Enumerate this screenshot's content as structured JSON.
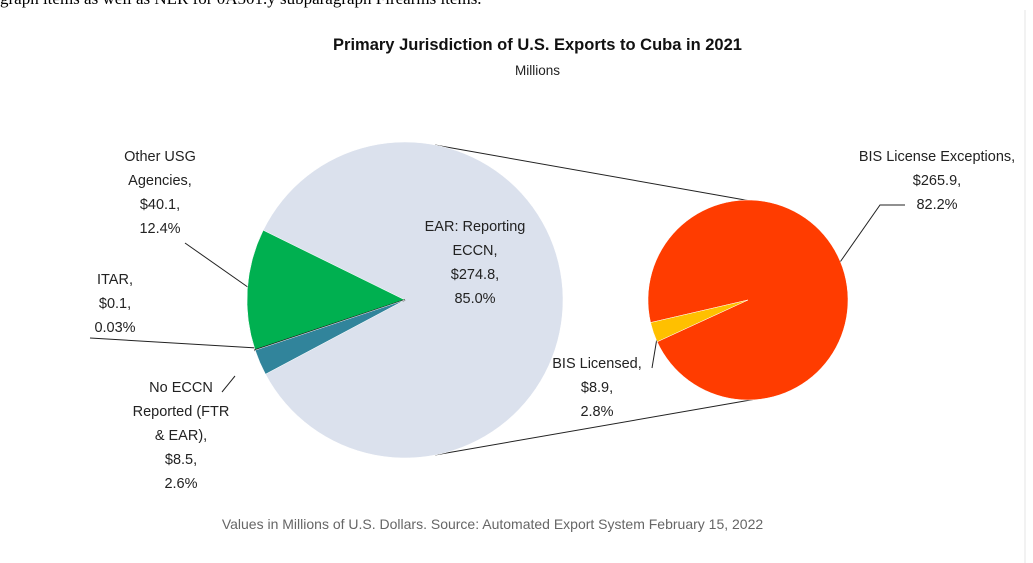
{
  "page_text": "graph items as well as NLR for 0A501.y subparagraph Firearms items.",
  "chart_data": {
    "type": "pie",
    "title": "Primary Jurisdiction of U.S. Exports to Cuba in 2021",
    "subtitle": "Millions",
    "footnote": "Values in Millions of U.S. Dollars.  Source: Automated Export System February 15, 2022",
    "categories": [
      "EAR: Reporting ECCN,",
      "Other USG Agencies,",
      "ITAR,",
      "No ECCN Reported (FTR & EAR),"
    ],
    "values": [
      274.8,
      40.1,
      0.1,
      8.5
    ],
    "value_labels": [
      "$274.8,",
      "$40.1,",
      "$0.1,",
      "$8.5,"
    ],
    "percents": [
      85.0,
      12.4,
      0.03,
      2.6
    ],
    "percent_labels": [
      "85.0%",
      "12.4%",
      "0.03%",
      "2.6%"
    ],
    "colors": [
      "#dbe1ed",
      "#00b050",
      "#1f3864",
      "#31849b"
    ],
    "secondary": {
      "categories": [
        "BIS License Exceptions,",
        "BIS Licensed,"
      ],
      "values": [
        265.9,
        8.9
      ],
      "value_labels": [
        "$265.9,",
        "$8.9,"
      ],
      "percents": [
        82.2,
        2.8
      ],
      "percent_labels": [
        "82.2%",
        "2.8%"
      ],
      "colors": [
        "#ff3c00",
        "#ffc000"
      ]
    }
  }
}
